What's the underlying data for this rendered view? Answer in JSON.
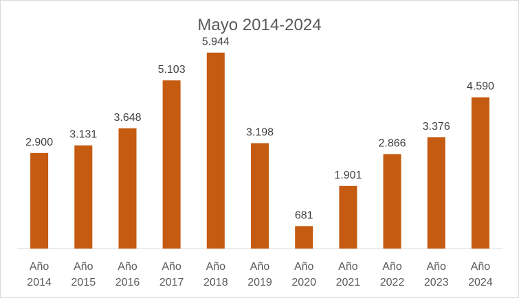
{
  "chart_data": {
    "type": "bar",
    "title": "Mayo 2014-2024",
    "categories": [
      [
        "Año",
        "2014"
      ],
      [
        "Año",
        "2015"
      ],
      [
        "Año",
        "2016"
      ],
      [
        "Año",
        "2017"
      ],
      [
        "Año",
        "2018"
      ],
      [
        "Año",
        "2019"
      ],
      [
        "Año",
        "2020"
      ],
      [
        "Año",
        "2021"
      ],
      [
        "Año",
        "2022"
      ],
      [
        "Año",
        "2023"
      ],
      [
        "Año",
        "2024"
      ]
    ],
    "values": [
      2900,
      3131,
      3648,
      5103,
      5944,
      3198,
      681,
      1901,
      2866,
      3376,
      4590
    ],
    "data_labels": [
      "2.900",
      "3.131",
      "3.648",
      "5.103",
      "5.944",
      "3.198",
      "681",
      "1.901",
      "2.866",
      "3.376",
      "4.590"
    ],
    "xlabel": "",
    "ylabel": "",
    "ylim": [
      0,
      6000
    ],
    "grid": false,
    "legend": "none",
    "bar_color": "#c55a11"
  }
}
